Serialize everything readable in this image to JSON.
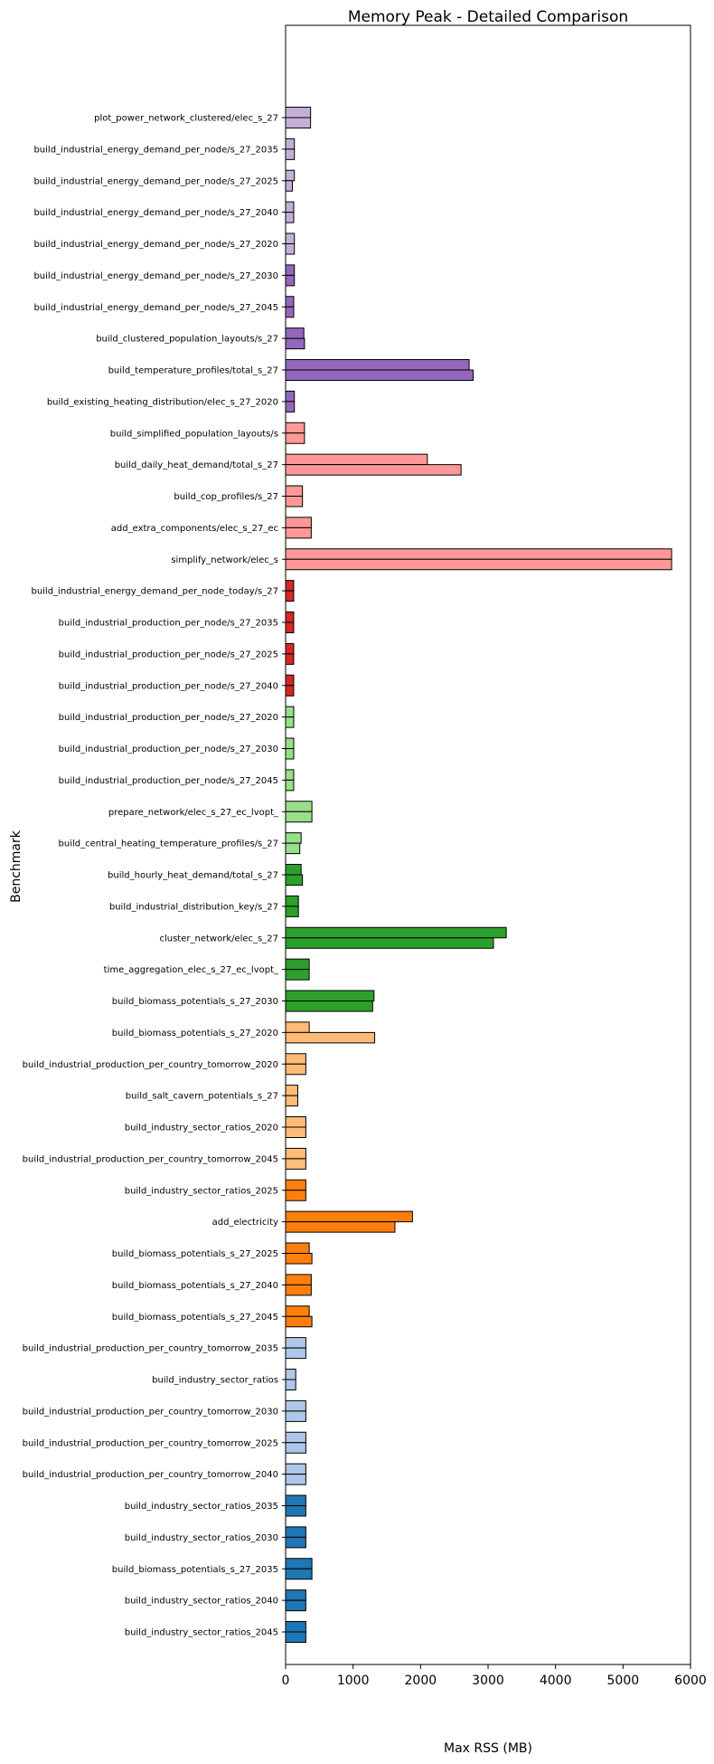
{
  "chart_data": {
    "type": "bar",
    "orientation": "horizontal",
    "title": "Memory Peak - Detailed Comparison",
    "xlabel": "Max RSS (MB)",
    "ylabel": "Benchmark",
    "xlim": [
      0,
      6000
    ],
    "xticks": [
      0,
      1000,
      2000,
      3000,
      4000,
      5000,
      6000
    ],
    "grid": false,
    "legend": "none",
    "categories": [
      "plot_power_network_clustered/elec_s_27",
      "build_industrial_energy_demand_per_node/s_27_2035",
      "build_industrial_energy_demand_per_node/s_27_2025",
      "build_industrial_energy_demand_per_node/s_27_2040",
      "build_industrial_energy_demand_per_node/s_27_2020",
      "build_industrial_energy_demand_per_node/s_27_2030",
      "build_industrial_energy_demand_per_node/s_27_2045",
      "build_clustered_population_layouts/s_27",
      "build_temperature_profiles/total_s_27",
      "build_existing_heating_distribution/elec_s_27_2020",
      "build_simplified_population_layouts/s",
      "build_daily_heat_demand/total_s_27",
      "build_cop_profiles/s_27",
      "add_extra_components/elec_s_27_ec",
      "simplify_network/elec_s",
      "build_industrial_energy_demand_per_node_today/s_27",
      "build_industrial_production_per_node/s_27_2035",
      "build_industrial_production_per_node/s_27_2025",
      "build_industrial_production_per_node/s_27_2040",
      "build_industrial_production_per_node/s_27_2020",
      "build_industrial_production_per_node/s_27_2030",
      "build_industrial_production_per_node/s_27_2045",
      "prepare_network/elec_s_27_ec_lvopt_",
      "build_central_heating_temperature_profiles/s_27",
      "build_hourly_heat_demand/total_s_27",
      "build_industrial_distribution_key/s_27",
      "cluster_network/elec_s_27",
      "time_aggregation_elec_s_27_ec_lvopt_",
      "build_biomass_potentials_s_27_2030",
      "build_biomass_potentials_s_27_2020",
      "build_industrial_production_per_country_tomorrow_2020",
      "build_salt_cavern_potentials_s_27",
      "build_industry_sector_ratios_2020",
      "build_industrial_production_per_country_tomorrow_2045",
      "build_industry_sector_ratios_2025",
      "add_electricity",
      "build_biomass_potentials_s_27_2025",
      "build_biomass_potentials_s_27_2040",
      "build_biomass_potentials_s_27_2045",
      "build_industrial_production_per_country_tomorrow_2035",
      "build_industry_sector_ratios",
      "build_industrial_production_per_country_tomorrow_2030",
      "build_industrial_production_per_country_tomorrow_2025",
      "build_industrial_production_per_country_tomorrow_2040",
      "build_industry_sector_ratios_2035",
      "build_industry_sector_ratios_2030",
      "build_biomass_potentials_s_27_2035",
      "build_industry_sector_ratios_2040",
      "build_industry_sector_ratios_2045"
    ],
    "values_a": [
      370,
      130,
      130,
      120,
      130,
      130,
      120,
      270,
      2720,
      130,
      280,
      2100,
      250,
      380,
      5720,
      120,
      120,
      120,
      120,
      120,
      120,
      120,
      390,
      230,
      230,
      190,
      3270,
      350,
      1310,
      350,
      300,
      180,
      300,
      300,
      300,
      1880,
      350,
      380,
      350,
      300,
      150,
      300,
      300,
      300,
      300,
      300,
      390,
      300,
      300
    ],
    "values_b": [
      370,
      130,
      100,
      120,
      130,
      130,
      120,
      280,
      2780,
      130,
      280,
      2600,
      250,
      380,
      5720,
      120,
      120,
      120,
      120,
      120,
      120,
      120,
      390,
      210,
      250,
      190,
      3080,
      350,
      1290,
      1320,
      300,
      180,
      300,
      300,
      300,
      1620,
      390,
      380,
      390,
      300,
      150,
      300,
      300,
      300,
      300,
      300,
      390,
      300,
      300
    ],
    "colors": [
      "#c5b0d5",
      "#c5b0d5",
      "#c5b0d5",
      "#c5b0d5",
      "#c5b0d5",
      "#9467bd",
      "#9467bd",
      "#9467bd",
      "#9467bd",
      "#9467bd",
      "#ff9896",
      "#ff9896",
      "#ff9896",
      "#ff9896",
      "#ff9896",
      "#d62728",
      "#d62728",
      "#d62728",
      "#d62728",
      "#98df8a",
      "#98df8a",
      "#98df8a",
      "#98df8a",
      "#98df8a",
      "#2ca02c",
      "#2ca02c",
      "#2ca02c",
      "#2ca02c",
      "#2ca02c",
      "#ffbb78",
      "#ffbb78",
      "#ffbb78",
      "#ffbb78",
      "#ffbb78",
      "#ff7f0e",
      "#ff7f0e",
      "#ff7f0e",
      "#ff7f0e",
      "#ff7f0e",
      "#aec7e8",
      "#aec7e8",
      "#aec7e8",
      "#aec7e8",
      "#aec7e8",
      "#1f77b4",
      "#1f77b4",
      "#1f77b4",
      "#1f77b4",
      "#1f77b4"
    ]
  }
}
